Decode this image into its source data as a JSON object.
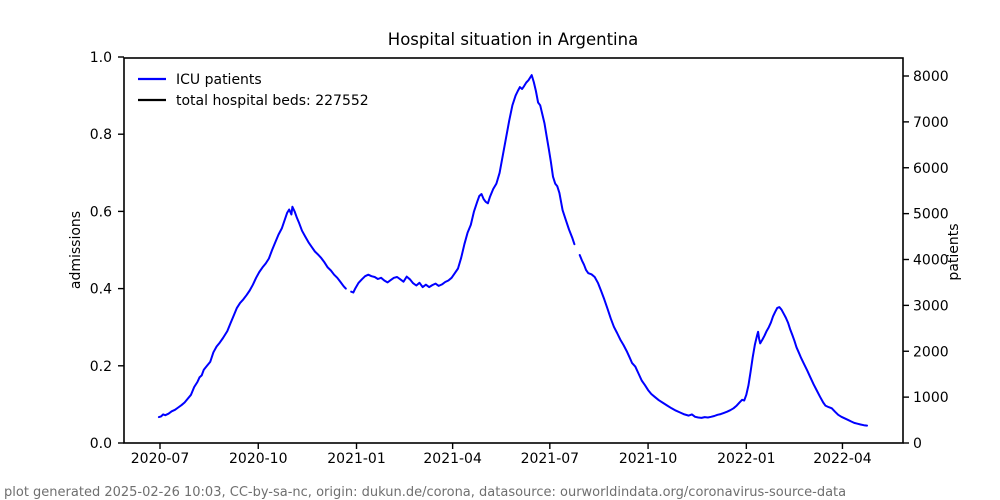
{
  "footer": "plot generated 2025-02-26 10:03, CC-by-sa-nc, origin: dukun.de/corona, datasource: ourworldindata.org/coronavirus-source-data",
  "legend": [
    {
      "label": "ICU patients",
      "color": "#0000ff"
    },
    {
      "label": "total hospital beds: 227552",
      "color": "#000000",
      "value": 227552
    }
  ],
  "chart_data": {
    "type": "line",
    "title": "Hospital situation in Argentina",
    "grid": false,
    "legend_position": "upper left",
    "left_axis": {
      "label": "admissions",
      "ticks": [
        0.0,
        0.2,
        0.4,
        0.6,
        0.8,
        1.0
      ],
      "range": [
        0.0,
        1.0
      ]
    },
    "right_axis": {
      "label": "patients",
      "ticks": [
        0,
        1000,
        2000,
        3000,
        4000,
        5000,
        6000,
        7000,
        8000
      ],
      "range": [
        0,
        8410
      ]
    },
    "x_axis": {
      "ticks": [
        "2020-07",
        "2020-10",
        "2021-01",
        "2021-04",
        "2021-07",
        "2021-10",
        "2022-01",
        "2022-04"
      ]
    },
    "series": [
      {
        "name": "ICU patients",
        "color": "#0000ff",
        "points": [
          [
            "2020-06-30",
            0.067
          ],
          [
            "2020-07-02",
            0.069
          ],
          [
            "2020-07-04",
            0.074
          ],
          [
            "2020-07-06",
            0.072
          ],
          [
            "2020-07-09",
            0.076
          ],
          [
            "2020-07-12",
            0.082
          ],
          [
            "2020-07-15",
            0.086
          ],
          [
            "2020-07-18",
            0.092
          ],
          [
            "2020-07-21",
            0.098
          ],
          [
            "2020-07-24",
            0.105
          ],
          [
            "2020-07-27",
            0.115
          ],
          [
            "2020-07-30",
            0.125
          ],
          [
            "2020-08-02",
            0.145
          ],
          [
            "2020-08-05",
            0.158
          ],
          [
            "2020-08-07",
            0.17
          ],
          [
            "2020-08-09",
            0.175
          ],
          [
            "2020-08-11",
            0.19
          ],
          [
            "2020-08-14",
            0.2
          ],
          [
            "2020-08-17",
            0.21
          ],
          [
            "2020-08-20",
            0.235
          ],
          [
            "2020-08-23",
            0.25
          ],
          [
            "2020-08-26",
            0.26
          ],
          [
            "2020-08-29",
            0.272
          ],
          [
            "2020-09-02",
            0.29
          ],
          [
            "2020-09-05",
            0.31
          ],
          [
            "2020-09-08",
            0.33
          ],
          [
            "2020-09-11",
            0.35
          ],
          [
            "2020-09-14",
            0.363
          ],
          [
            "2020-09-17",
            0.372
          ],
          [
            "2020-09-20",
            0.383
          ],
          [
            "2020-09-23",
            0.395
          ],
          [
            "2020-09-26",
            0.41
          ],
          [
            "2020-09-29",
            0.428
          ],
          [
            "2020-10-02",
            0.443
          ],
          [
            "2020-10-05",
            0.455
          ],
          [
            "2020-10-08",
            0.465
          ],
          [
            "2020-10-11",
            0.478
          ],
          [
            "2020-10-14",
            0.5
          ],
          [
            "2020-10-17",
            0.52
          ],
          [
            "2020-10-20",
            0.54
          ],
          [
            "2020-10-23",
            0.556
          ],
          [
            "2020-10-26",
            0.58
          ],
          [
            "2020-10-28",
            0.596
          ],
          [
            "2020-10-30",
            0.605
          ],
          [
            "2020-11-01",
            0.592
          ],
          [
            "2020-11-02",
            0.612
          ],
          [
            "2020-11-04",
            0.6
          ],
          [
            "2020-11-06",
            0.585
          ],
          [
            "2020-11-08",
            0.572
          ],
          [
            "2020-11-11",
            0.55
          ],
          [
            "2020-11-14",
            0.535
          ],
          [
            "2020-11-17",
            0.52
          ],
          [
            "2020-11-20",
            0.508
          ],
          [
            "2020-11-23",
            0.496
          ],
          [
            "2020-11-26",
            0.488
          ],
          [
            "2020-11-29",
            0.479
          ],
          [
            "2020-12-02",
            0.468
          ],
          [
            "2020-12-05",
            0.455
          ],
          [
            "2020-12-08",
            0.447
          ],
          [
            "2020-12-11",
            0.436
          ],
          [
            "2020-12-14",
            0.428
          ],
          [
            "2020-12-17",
            0.417
          ],
          [
            "2020-12-20",
            0.406
          ],
          [
            "2020-12-22",
            0.4
          ],
          [
            "2020-12-24",
            null
          ],
          [
            "2020-12-27",
            0.392
          ],
          [
            "2020-12-29",
            0.39
          ],
          [
            "2020-12-31",
            0.401
          ],
          [
            "2021-01-03",
            0.415
          ],
          [
            "2021-01-06",
            0.424
          ],
          [
            "2021-01-09",
            0.432
          ],
          [
            "2021-01-12",
            0.436
          ],
          [
            "2021-01-15",
            0.432
          ],
          [
            "2021-01-18",
            0.43
          ],
          [
            "2021-01-21",
            0.425
          ],
          [
            "2021-01-24",
            0.428
          ],
          [
            "2021-01-27",
            0.421
          ],
          [
            "2021-01-30",
            0.416
          ],
          [
            "2021-02-02",
            0.422
          ],
          [
            "2021-02-05",
            0.428
          ],
          [
            "2021-02-08",
            0.43
          ],
          [
            "2021-02-11",
            0.424
          ],
          [
            "2021-02-14",
            0.418
          ],
          [
            "2021-02-17",
            0.431
          ],
          [
            "2021-02-20",
            0.424
          ],
          [
            "2021-02-23",
            0.414
          ],
          [
            "2021-02-26",
            0.408
          ],
          [
            "2021-03-01",
            0.415
          ],
          [
            "2021-03-04",
            0.404
          ],
          [
            "2021-03-07",
            0.41
          ],
          [
            "2021-03-10",
            0.404
          ],
          [
            "2021-03-13",
            0.409
          ],
          [
            "2021-03-16",
            0.413
          ],
          [
            "2021-03-19",
            0.407
          ],
          [
            "2021-03-22",
            0.411
          ],
          [
            "2021-03-25",
            0.417
          ],
          [
            "2021-03-28",
            0.421
          ],
          [
            "2021-03-31",
            0.428
          ],
          [
            "2021-04-03",
            0.44
          ],
          [
            "2021-04-06",
            0.452
          ],
          [
            "2021-04-09",
            0.48
          ],
          [
            "2021-04-12",
            0.515
          ],
          [
            "2021-04-15",
            0.545
          ],
          [
            "2021-04-18",
            0.565
          ],
          [
            "2021-04-21",
            0.6
          ],
          [
            "2021-04-24",
            0.625
          ],
          [
            "2021-04-26",
            0.64
          ],
          [
            "2021-04-28",
            0.645
          ],
          [
            "2021-04-30",
            0.632
          ],
          [
            "2021-05-02",
            0.625
          ],
          [
            "2021-05-04",
            0.621
          ],
          [
            "2021-05-06",
            0.638
          ],
          [
            "2021-05-09",
            0.658
          ],
          [
            "2021-05-12",
            0.672
          ],
          [
            "2021-05-15",
            0.7
          ],
          [
            "2021-05-18",
            0.745
          ],
          [
            "2021-05-21",
            0.79
          ],
          [
            "2021-05-24",
            0.835
          ],
          [
            "2021-05-27",
            0.875
          ],
          [
            "2021-05-30",
            0.9
          ],
          [
            "2021-06-01",
            0.912
          ],
          [
            "2021-06-03",
            0.922
          ],
          [
            "2021-06-05",
            0.917
          ],
          [
            "2021-06-07",
            0.925
          ],
          [
            "2021-06-09",
            0.934
          ],
          [
            "2021-06-11",
            0.94
          ],
          [
            "2021-06-14",
            0.953
          ],
          [
            "2021-06-16",
            0.935
          ],
          [
            "2021-06-18",
            0.912
          ],
          [
            "2021-06-20",
            0.882
          ],
          [
            "2021-06-22",
            0.875
          ],
          [
            "2021-06-24",
            0.852
          ],
          [
            "2021-06-26",
            0.828
          ],
          [
            "2021-06-28",
            0.795
          ],
          [
            "2021-06-30",
            0.762
          ],
          [
            "2021-07-02",
            0.728
          ],
          [
            "2021-07-04",
            0.69
          ],
          [
            "2021-07-06",
            0.672
          ],
          [
            "2021-07-08",
            0.665
          ],
          [
            "2021-07-10",
            0.648
          ],
          [
            "2021-07-13",
            0.603
          ],
          [
            "2021-07-16",
            0.578
          ],
          [
            "2021-07-19",
            0.553
          ],
          [
            "2021-07-22",
            0.532
          ],
          [
            "2021-07-24",
            0.515
          ],
          [
            "2021-07-26",
            null
          ],
          [
            "2021-07-29",
            0.487
          ],
          [
            "2021-07-31",
            0.473
          ],
          [
            "2021-08-02",
            0.462
          ],
          [
            "2021-08-04",
            0.448
          ],
          [
            "2021-08-06",
            0.44
          ],
          [
            "2021-08-09",
            0.437
          ],
          [
            "2021-08-12",
            0.43
          ],
          [
            "2021-08-15",
            0.415
          ],
          [
            "2021-08-18",
            0.394
          ],
          [
            "2021-08-21",
            0.372
          ],
          [
            "2021-08-24",
            0.348
          ],
          [
            "2021-08-27",
            0.323
          ],
          [
            "2021-08-30",
            0.301
          ],
          [
            "2021-09-02",
            0.285
          ],
          [
            "2021-09-05",
            0.268
          ],
          [
            "2021-09-08",
            0.254
          ],
          [
            "2021-09-11",
            0.238
          ],
          [
            "2021-09-14",
            0.22
          ],
          [
            "2021-09-16",
            0.207
          ],
          [
            "2021-09-19",
            0.198
          ],
          [
            "2021-09-22",
            0.18
          ],
          [
            "2021-09-25",
            0.162
          ],
          [
            "2021-09-28",
            0.15
          ],
          [
            "2021-10-01",
            0.137
          ],
          [
            "2021-10-04",
            0.127
          ],
          [
            "2021-10-07",
            0.12
          ],
          [
            "2021-10-11",
            0.111
          ],
          [
            "2021-10-15",
            0.104
          ],
          [
            "2021-10-19",
            0.097
          ],
          [
            "2021-10-23",
            0.09
          ],
          [
            "2021-10-27",
            0.084
          ],
          [
            "2021-10-31",
            0.079
          ],
          [
            "2021-11-04",
            0.074
          ],
          [
            "2021-11-08",
            0.071
          ],
          [
            "2021-11-11",
            0.074
          ],
          [
            "2021-11-14",
            0.068
          ],
          [
            "2021-11-17",
            0.066
          ],
          [
            "2021-11-20",
            0.065
          ],
          [
            "2021-11-23",
            0.067
          ],
          [
            "2021-11-26",
            0.066
          ],
          [
            "2021-11-29",
            0.068
          ],
          [
            "2021-12-02",
            0.07
          ],
          [
            "2021-12-05",
            0.073
          ],
          [
            "2021-12-08",
            0.075
          ],
          [
            "2021-12-11",
            0.078
          ],
          [
            "2021-12-14",
            0.081
          ],
          [
            "2021-12-17",
            0.085
          ],
          [
            "2021-12-20",
            0.09
          ],
          [
            "2021-12-23",
            0.097
          ],
          [
            "2021-12-26",
            0.106
          ],
          [
            "2021-12-28",
            0.112
          ],
          [
            "2021-12-30",
            0.11
          ],
          [
            "2022-01-01",
            0.125
          ],
          [
            "2022-01-03",
            0.15
          ],
          [
            "2022-01-05",
            0.185
          ],
          [
            "2022-01-07",
            0.222
          ],
          [
            "2022-01-09",
            0.255
          ],
          [
            "2022-01-11",
            0.278
          ],
          [
            "2022-01-12",
            0.288
          ],
          [
            "2022-01-13",
            0.27
          ],
          [
            "2022-01-14",
            0.258
          ],
          [
            "2022-01-16",
            0.268
          ],
          [
            "2022-01-18",
            0.278
          ],
          [
            "2022-01-20",
            0.29
          ],
          [
            "2022-01-22",
            0.3
          ],
          [
            "2022-01-24",
            0.312
          ],
          [
            "2022-01-26",
            0.328
          ],
          [
            "2022-01-28",
            0.34
          ],
          [
            "2022-01-30",
            0.35
          ],
          [
            "2022-02-01",
            0.352
          ],
          [
            "2022-02-03",
            0.345
          ],
          [
            "2022-02-05",
            0.335
          ],
          [
            "2022-02-07",
            0.325
          ],
          [
            "2022-02-09",
            0.312
          ],
          [
            "2022-02-11",
            0.295
          ],
          [
            "2022-02-13",
            0.28
          ],
          [
            "2022-02-15",
            0.265
          ],
          [
            "2022-02-17",
            0.248
          ],
          [
            "2022-02-19",
            0.235
          ],
          [
            "2022-02-21",
            0.222
          ],
          [
            "2022-02-24",
            0.205
          ],
          [
            "2022-02-27",
            0.188
          ],
          [
            "2022-03-02",
            0.17
          ],
          [
            "2022-03-05",
            0.152
          ],
          [
            "2022-03-08",
            0.136
          ],
          [
            "2022-03-11",
            0.12
          ],
          [
            "2022-03-14",
            0.105
          ],
          [
            "2022-03-16",
            0.097
          ],
          [
            "2022-03-19",
            0.093
          ],
          [
            "2022-03-22",
            0.09
          ],
          [
            "2022-03-25",
            0.081
          ],
          [
            "2022-03-28",
            0.073
          ],
          [
            "2022-03-31",
            0.068
          ],
          [
            "2022-04-03",
            0.064
          ],
          [
            "2022-04-06",
            0.06
          ],
          [
            "2022-04-09",
            0.056
          ],
          [
            "2022-04-12",
            0.052
          ],
          [
            "2022-04-15",
            0.05
          ],
          [
            "2022-04-18",
            0.048
          ],
          [
            "2022-04-21",
            0.046
          ],
          [
            "2022-04-24",
            0.045
          ]
        ]
      },
      {
        "name": "total hospital beds: 227552",
        "color": "#000000",
        "constant": 227552,
        "points": []
      }
    ]
  }
}
